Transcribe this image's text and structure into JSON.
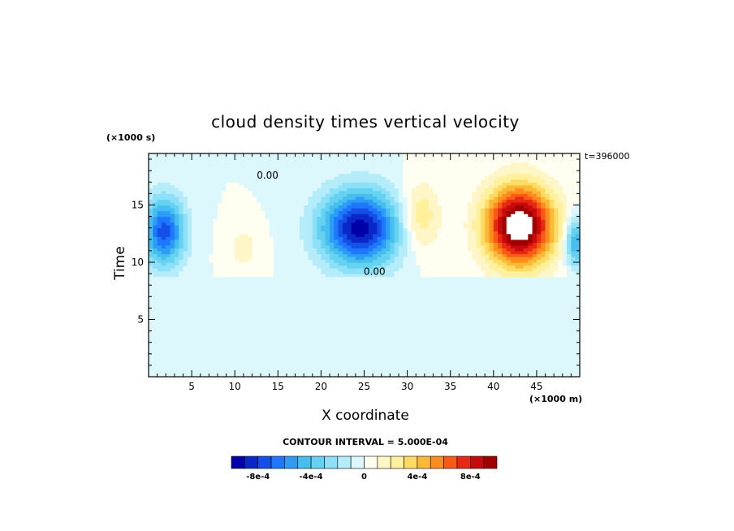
{
  "chart_data": {
    "type": "heatmap",
    "title": "cloud density times vertical velocity",
    "xlabel": "X coordinate",
    "ylabel": "Time",
    "x_unit": "(×1000 m)",
    "y_unit": "(×1000 s)",
    "annotation": "t=396000",
    "contour_interval_label": "CONTOUR INTERVAL = 5.000E-04",
    "xlim": [
      0,
      50
    ],
    "ylim": [
      0,
      19.5
    ],
    "x_ticks": [
      5,
      10,
      15,
      20,
      25,
      30,
      35,
      40,
      45
    ],
    "y_ticks": [
      5,
      10,
      15
    ],
    "contour_labels": [
      "0.00",
      "0.00"
    ],
    "fill_value": 0.0,
    "blobs": [
      {
        "x": 1.8,
        "y": 12.7,
        "sx": 2.4,
        "sy": 3.0,
        "amp": -0.00075
      },
      {
        "x": 24.5,
        "y": 13.0,
        "sx": 4.6,
        "sy": 3.3,
        "amp": -0.00095
      },
      {
        "x": 49.5,
        "y": 11.8,
        "sx": 1.2,
        "sy": 2.2,
        "amp": -0.00055
      },
      {
        "x": 11.0,
        "y": 11.3,
        "sx": 1.9,
        "sy": 1.9,
        "amp": 0.00015
      },
      {
        "x": 31.5,
        "y": 14.0,
        "sx": 2.3,
        "sy": 3.0,
        "amp": 0.00032
      },
      {
        "x": 43.0,
        "y": 13.2,
        "sx": 4.0,
        "sy": 3.5,
        "amp": 0.00115
      }
    ],
    "colorbar": {
      "levels": [
        -0.001,
        -0.0009,
        -0.0008,
        -0.0007,
        -0.0006,
        -0.0005,
        -0.0004,
        -0.0003,
        -0.0002,
        -0.0001,
        0,
        0.0001,
        0.0002,
        0.0003,
        0.0004,
        0.0005,
        0.0006,
        0.0007,
        0.0008,
        0.0009,
        0.001
      ],
      "colors": [
        "#0000a8",
        "#0a28c8",
        "#1450e6",
        "#1e78ff",
        "#2c9cf6",
        "#46beee",
        "#64d2f0",
        "#8ce0f8",
        "#b4ecfa",
        "#dcf8fc",
        "#fffef0",
        "#fff6c8",
        "#fff09c",
        "#fedc64",
        "#feb838",
        "#fe8c1e",
        "#fa5a14",
        "#e62814",
        "#c80a0a",
        "#a00000"
      ],
      "tick_labels": [
        {
          "label": "-8e-4",
          "value": -0.0008
        },
        {
          "label": "-4e-4",
          "value": -0.0004
        },
        {
          "label": "0",
          "value": 0
        },
        {
          "label": "4e-4",
          "value": 0.0004
        },
        {
          "label": "8e-4",
          "value": 0.0008
        }
      ]
    },
    "grid": false
  }
}
